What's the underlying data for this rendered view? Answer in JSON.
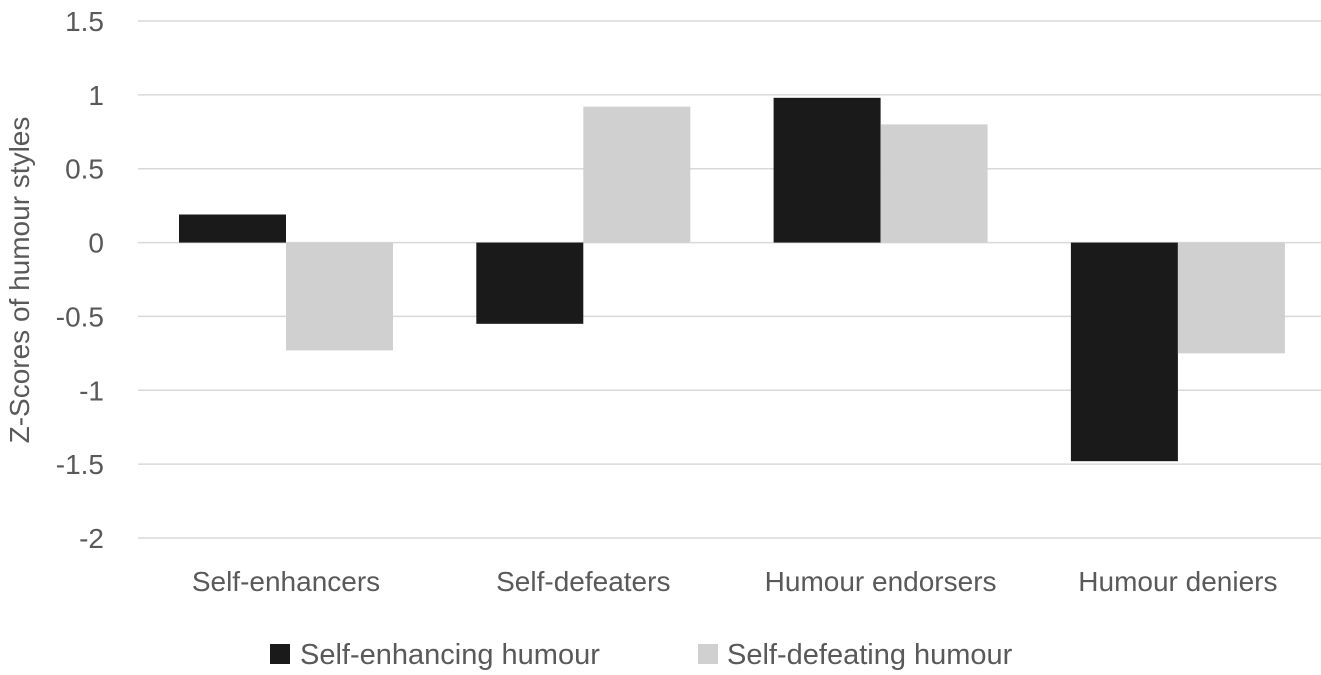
{
  "chart_data": {
    "type": "bar",
    "title": "",
    "xlabel": "",
    "ylabel": "Z-Scores of humour styles",
    "ylim": [
      -2,
      1.5
    ],
    "yticks": [
      1.5,
      1,
      0.5,
      0,
      -0.5,
      -1,
      -1.5,
      -2
    ],
    "ytick_labels": [
      "1.5",
      "1",
      "0.5",
      "0",
      "-0.5",
      "-1",
      "-1.5",
      "-2"
    ],
    "grid": true,
    "legend_position": "bottom",
    "categories": [
      "Self-enhancers",
      "Self-defeaters",
      "Humour endorsers",
      "Humour deniers"
    ],
    "series": [
      {
        "name": "Self-enhancing humour",
        "color": "#1a1a1a",
        "values": [
          0.19,
          -0.55,
          0.98,
          -1.48
        ]
      },
      {
        "name": "Self-defeating humour",
        "color": "#d0d0d0",
        "values": [
          -0.73,
          0.92,
          0.8,
          -0.75
        ]
      }
    ]
  }
}
